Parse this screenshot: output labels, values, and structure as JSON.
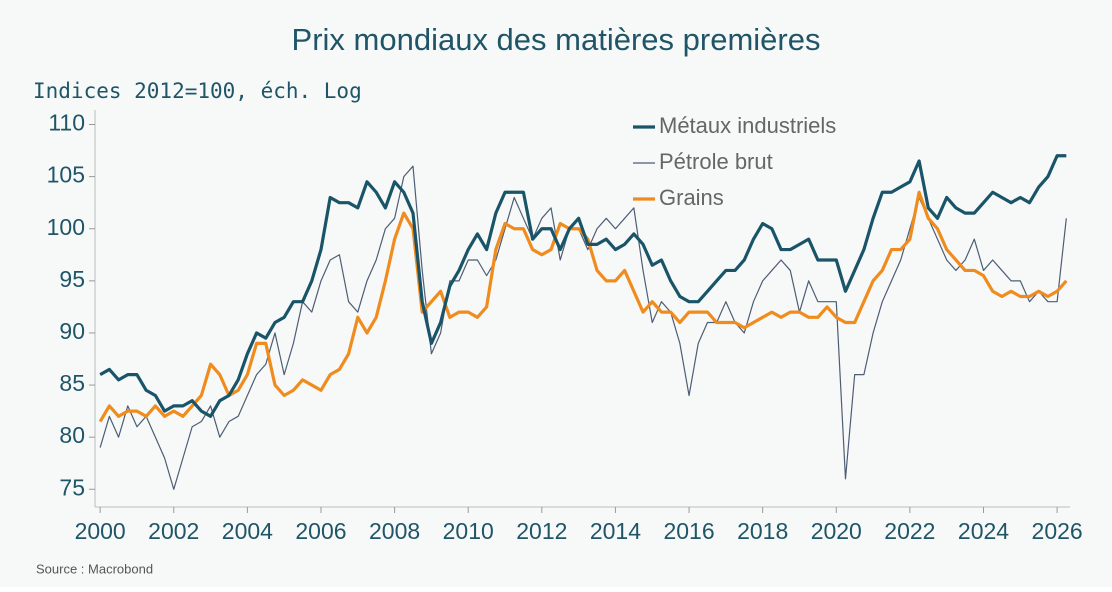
{
  "chart_data": {
    "type": "line",
    "title": "Prix mondiaux des matières premières",
    "subtitle": "Indices 2012=100, éch. Log",
    "source": "Source : Macrobond",
    "legend": "top-center",
    "x": [
      2000,
      2000.25,
      2000.5,
      2000.75,
      2001,
      2001.25,
      2001.5,
      2001.75,
      2002,
      2002.25,
      2002.5,
      2002.75,
      2003,
      2003.25,
      2003.5,
      2003.75,
      2004,
      2004.25,
      2004.5,
      2004.75,
      2005,
      2005.25,
      2005.5,
      2005.75,
      2006,
      2006.25,
      2006.5,
      2006.75,
      2007,
      2007.25,
      2007.5,
      2007.75,
      2008,
      2008.25,
      2008.5,
      2008.75,
      2009,
      2009.25,
      2009.5,
      2009.75,
      2010,
      2010.25,
      2010.5,
      2010.75,
      2011,
      2011.25,
      2011.5,
      2011.75,
      2012,
      2012.25,
      2012.5,
      2012.75,
      2013,
      2013.25,
      2013.5,
      2013.75,
      2014,
      2014.25,
      2014.5,
      2014.75,
      2015,
      2015.25,
      2015.5,
      2015.75,
      2016,
      2016.25,
      2016.5,
      2016.75,
      2017,
      2017.25,
      2017.5,
      2017.75,
      2018,
      2018.25,
      2018.5,
      2018.75,
      2019,
      2019.25,
      2019.5,
      2019.75,
      2020,
      2020.25,
      2020.5,
      2020.75,
      2021,
      2021.25,
      2021.5,
      2021.75,
      2022,
      2022.25,
      2022.5,
      2022.75,
      2023,
      2023.25,
      2023.5,
      2023.75,
      2024,
      2024.25,
      2024.5,
      2024.75,
      2025,
      2025.25,
      2025.5,
      2025.75,
      2026,
      2026.25
    ],
    "series": [
      {
        "name": "Métaux industriels",
        "color": "#1a5468",
        "width": 3.2,
        "values": [
          86,
          86.5,
          85.5,
          86,
          86,
          84.5,
          84,
          82.5,
          83,
          83,
          83.5,
          82.5,
          82,
          83.5,
          84,
          85.5,
          88,
          90,
          89.5,
          91,
          91.5,
          93,
          93,
          95,
          98,
          103,
          102.5,
          102.5,
          102,
          104.5,
          103.5,
          102,
          104.5,
          103.5,
          101.5,
          93,
          89,
          91,
          94.5,
          96,
          98,
          99.5,
          98,
          101.5,
          103.5,
          103.5,
          103.5,
          99,
          100,
          100,
          98,
          100,
          101,
          98.5,
          98.5,
          99,
          98,
          98.5,
          99.5,
          98.5,
          96.5,
          97,
          95,
          93.5,
          93,
          93,
          94,
          95,
          96,
          96,
          97,
          99,
          100.5,
          100,
          98,
          98,
          98.5,
          99,
          97,
          97,
          97,
          94,
          96,
          98,
          101,
          103.5,
          103.5,
          104,
          104.5,
          106.5,
          102,
          101,
          103,
          102,
          101.5,
          101.5,
          102.5,
          103.5,
          103,
          102.5,
          103,
          102.5,
          104,
          105,
          107,
          107
        ]
      },
      {
        "name": "Pétrole brut",
        "color": "#4d5d74",
        "width": 1.2,
        "values": [
          79,
          82,
          80,
          83,
          81,
          82,
          80,
          78,
          75,
          78,
          81,
          81.5,
          83,
          80,
          81.5,
          82,
          84,
          86,
          87,
          90,
          86,
          89,
          93,
          92,
          95,
          97,
          97.5,
          93,
          92,
          95,
          97,
          100,
          101,
          105,
          106,
          96,
          88,
          90,
          95,
          95,
          97,
          97,
          95.5,
          97,
          100,
          103,
          101,
          99,
          101,
          102,
          97,
          100,
          100,
          98,
          100,
          101,
          100,
          101,
          102,
          96,
          91,
          93,
          92,
          89,
          84,
          89,
          91,
          91,
          93,
          91,
          90,
          93,
          95,
          96,
          97,
          96,
          92,
          95,
          93,
          93,
          93,
          76,
          86,
          86,
          90,
          93,
          95,
          97,
          100,
          103,
          101,
          99,
          97,
          96,
          97,
          99,
          96,
          97,
          96,
          95,
          95,
          93,
          94,
          93,
          93,
          101
        ]
      },
      {
        "name": "Grains",
        "color": "#f08c1e",
        "width": 3.2,
        "values": [
          81.5,
          83,
          82,
          82.5,
          82.5,
          82,
          83,
          82,
          82.5,
          82,
          83,
          84,
          87,
          86,
          84,
          84.5,
          86,
          89,
          89,
          85,
          84,
          84.5,
          85.5,
          85,
          84.5,
          86,
          86.5,
          88,
          91.5,
          90,
          91.5,
          95,
          99,
          101.5,
          100,
          92,
          93,
          94,
          91.5,
          92,
          92,
          91.5,
          92.5,
          98,
          100.5,
          100,
          100,
          98,
          97.5,
          98,
          100.5,
          100,
          100,
          99,
          96,
          95,
          95,
          96,
          94,
          92,
          93,
          92,
          92,
          91,
          92,
          92,
          92,
          91,
          91,
          91,
          90.5,
          91,
          91.5,
          92,
          91.5,
          92,
          92,
          91.5,
          91.5,
          92.5,
          91.5,
          91,
          91,
          93,
          95,
          96,
          98,
          98,
          99,
          103.5,
          101,
          100,
          98,
          97,
          96,
          96,
          95.5,
          94,
          93.5,
          94,
          93.5,
          93.5,
          94,
          93.5,
          94,
          95
        ]
      }
    ],
    "xlim": [
      1999.86,
      2026.35
    ],
    "ylim": [
      73.3,
      111.2
    ],
    "xticks": [
      2000,
      2002,
      2004,
      2006,
      2008,
      2010,
      2012,
      2014,
      2016,
      2018,
      2020,
      2022,
      2024,
      2026
    ],
    "yticks": [
      75,
      80,
      85,
      90,
      95,
      100,
      105,
      110
    ]
  }
}
